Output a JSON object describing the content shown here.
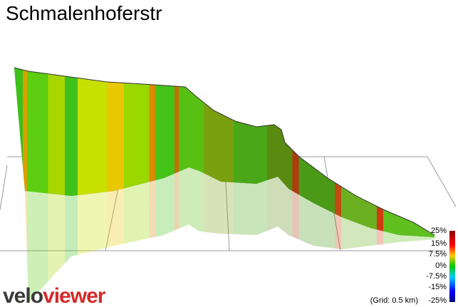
{
  "header": {
    "title": "Schmalenhoferstr"
  },
  "legend": {
    "labels": [
      "25%",
      "15%",
      "7.5%",
      "0%",
      "-7.5%",
      "-15%",
      "-25%"
    ]
  },
  "grid_note": "(Grid: 0.5 km)",
  "logo": {
    "part1": "velo",
    "part2": "viewer"
  }
}
